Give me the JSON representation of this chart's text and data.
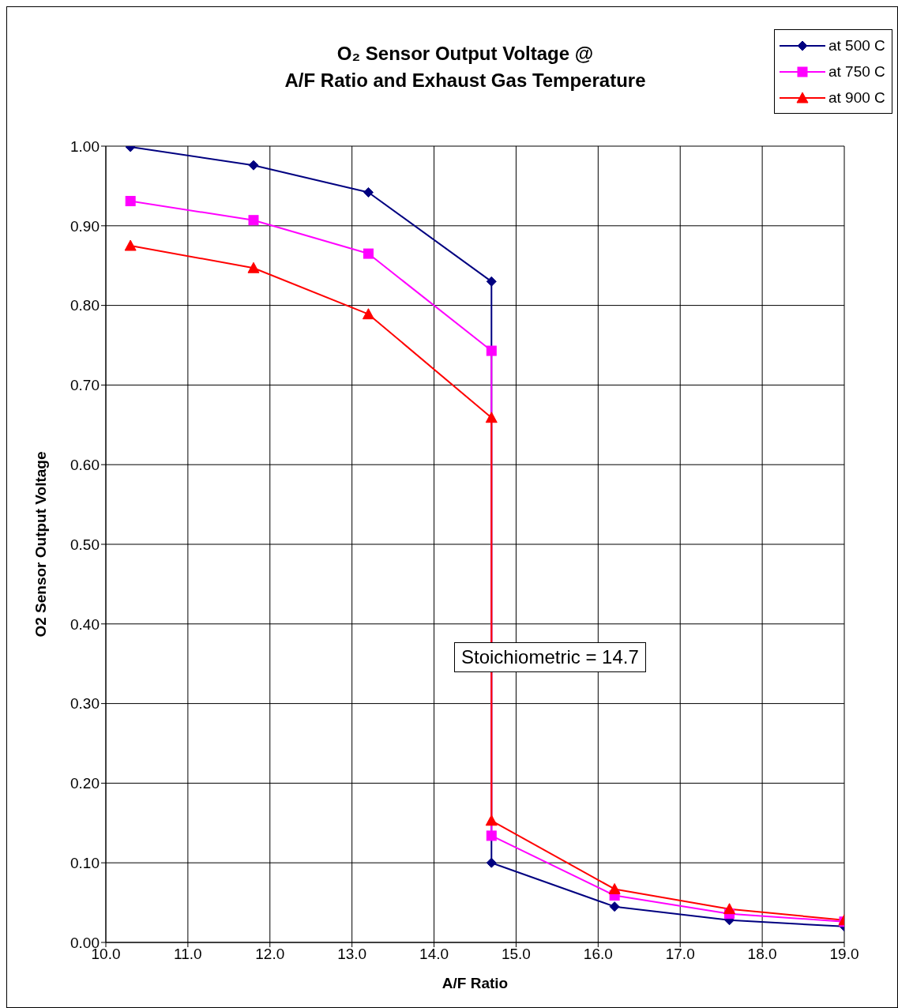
{
  "chart_data": {
    "type": "line",
    "title": "O₂ Sensor Output Voltage @\nA/F Ratio and Exhaust Gas Temperature",
    "xlabel": "A/F Ratio",
    "ylabel": "O2 Sensor Output Voltage",
    "x": [
      10.3,
      11.8,
      13.2,
      14.7,
      14.7,
      16.2,
      17.6,
      19.0
    ],
    "series": [
      {
        "name": "at 500 C",
        "color": "#000080",
        "marker": "diamond",
        "values": [
          0.999,
          0.976,
          0.942,
          0.83,
          0.1,
          0.045,
          0.028,
          0.02
        ]
      },
      {
        "name": "at 750 C",
        "color": "#ff00ff",
        "marker": "square",
        "values": [
          0.931,
          0.907,
          0.865,
          0.743,
          0.134,
          0.059,
          0.036,
          0.026
        ]
      },
      {
        "name": "at 900 C",
        "color": "#ff0000",
        "marker": "triangle",
        "values": [
          0.875,
          0.847,
          0.789,
          0.659,
          0.153,
          0.067,
          0.042,
          0.028
        ]
      }
    ],
    "xlim": [
      10,
      19
    ],
    "xticks": [
      {
        "value": 10,
        "label": "10.0"
      },
      {
        "value": 11,
        "label": "11.0"
      },
      {
        "value": 12,
        "label": "12.0"
      },
      {
        "value": 13,
        "label": "13.0"
      },
      {
        "value": 14,
        "label": "14.0"
      },
      {
        "value": 15,
        "label": "15.0"
      },
      {
        "value": 16,
        "label": "16.0"
      },
      {
        "value": 17,
        "label": "17.0"
      },
      {
        "value": 18,
        "label": "18.0"
      },
      {
        "value": 19,
        "label": "19.0"
      }
    ],
    "ylim": [
      0,
      1
    ],
    "yticks": [
      {
        "value": 0,
        "label": "0.00"
      },
      {
        "value": 0.1,
        "label": "0.10"
      },
      {
        "value": 0.2,
        "label": "0.20"
      },
      {
        "value": 0.3,
        "label": "0.30"
      },
      {
        "value": 0.4,
        "label": "0.40"
      },
      {
        "value": 0.5,
        "label": "0.50"
      },
      {
        "value": 0.6,
        "label": "0.60"
      },
      {
        "value": 0.7,
        "label": "0.70"
      },
      {
        "value": 0.8,
        "label": "0.80"
      },
      {
        "value": 0.9,
        "label": "0.90"
      },
      {
        "value": 1,
        "label": "1.00"
      }
    ],
    "grid": true,
    "legend": "top right",
    "annotations": [
      "Stoichiometric = 14.7"
    ]
  }
}
